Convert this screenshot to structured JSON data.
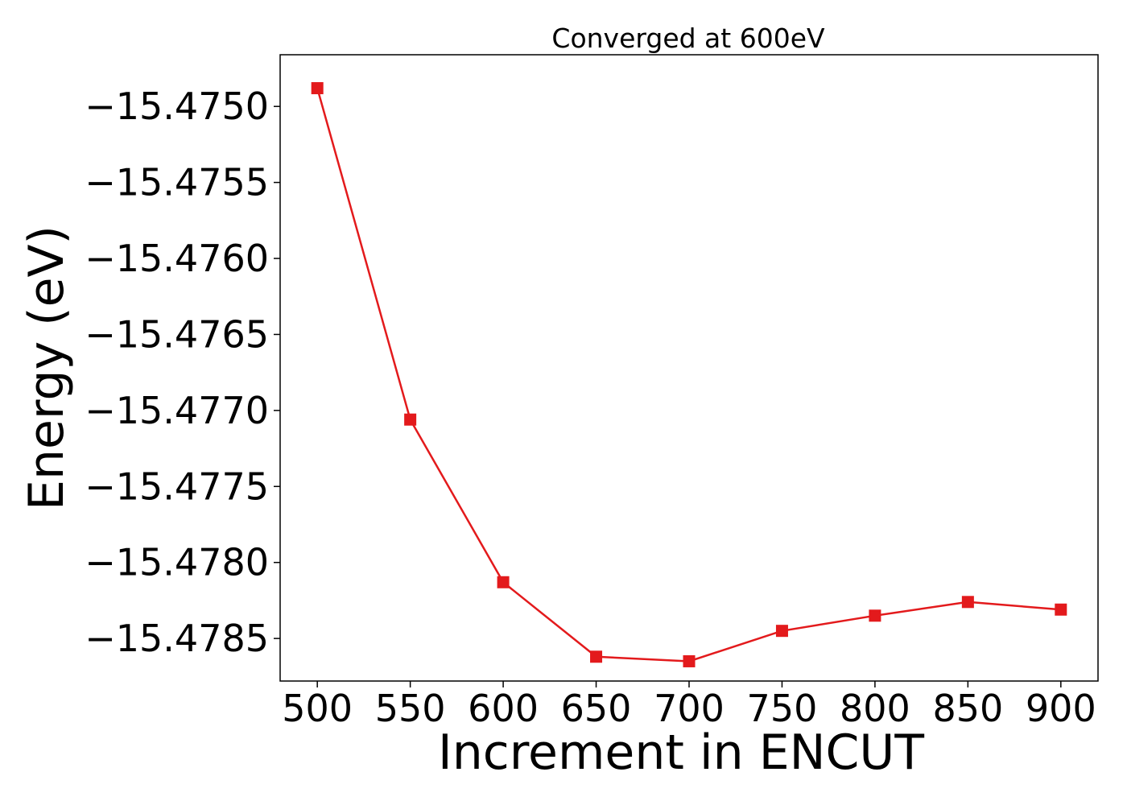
{
  "chart_data": {
    "type": "line",
    "title": "Converged at 600eV",
    "xlabel": "Increment in ENCUT",
    "ylabel": "Energy (eV)",
    "x": [
      500,
      550,
      600,
      650,
      700,
      750,
      800,
      850,
      900
    ],
    "series": [
      {
        "values": [
          -15.47488,
          -15.47706,
          -15.47813,
          -15.47862,
          -15.47865,
          -15.47845,
          -15.47835,
          -15.47826,
          -15.47831
        ],
        "color": "#e31a1c",
        "marker": "square"
      }
    ],
    "xticks": [
      500,
      550,
      600,
      650,
      700,
      750,
      800,
      850,
      900
    ],
    "xtick_labels": [
      "500",
      "550",
      "600",
      "650",
      "700",
      "750",
      "800",
      "850",
      "900"
    ],
    "yticks": [
      -15.475,
      -15.4755,
      -15.476,
      -15.4765,
      -15.477,
      -15.4775,
      -15.478,
      -15.4785
    ],
    "ytick_labels": [
      "−15.4750",
      "−15.4755",
      "−15.4760",
      "−15.4765",
      "−15.4770",
      "−15.4775",
      "−15.4780",
      "−15.4785"
    ],
    "xlim": [
      480,
      920
    ],
    "ylim": [
      -15.47878,
      -15.47466
    ],
    "grid": false,
    "legend": "none"
  }
}
